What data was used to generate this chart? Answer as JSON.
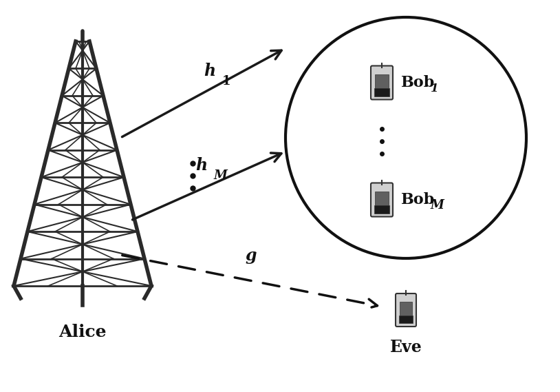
{
  "background_color": "#ffffff",
  "figure_width": 8.14,
  "figure_height": 5.69,
  "alice_label": "Alice",
  "bob1_label": "Bob",
  "bob1_sub": "1",
  "bobM_label": "Bob",
  "bobM_sub": "M",
  "eve_label": "Eve",
  "h1_label": "h",
  "h1_sub": "1",
  "hM_label": "h",
  "hM_sub": "M",
  "g_label": "g",
  "arrow_color": "#1a1a1a",
  "text_color": "#111111",
  "dots_color": "#111111",
  "circle_color": "#111111",
  "dashed_color": "#111111",
  "tower_color": "#2a2a2a"
}
